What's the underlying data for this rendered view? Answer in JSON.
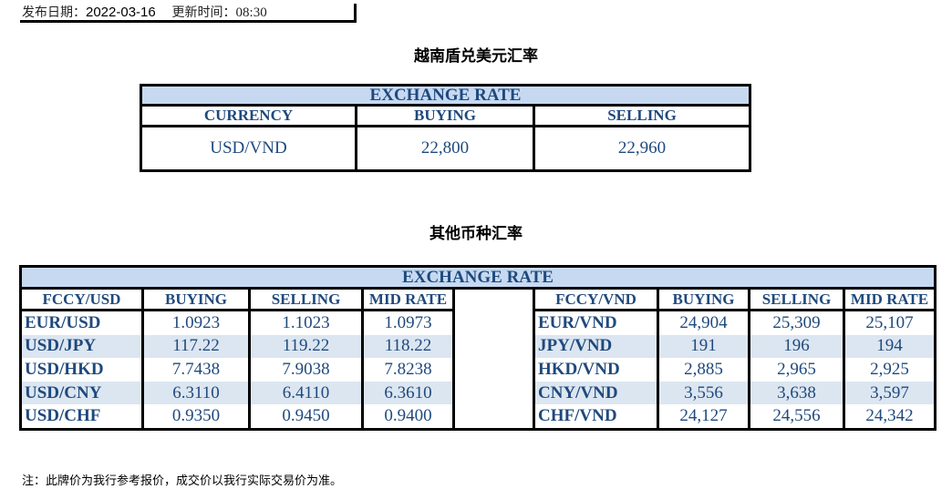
{
  "meta": {
    "date_label": "发布日期：",
    "date": "2022-03-16",
    "time_label": "更新时间：",
    "time": "08:30"
  },
  "usd_section": {
    "title": "越南盾兑美元汇率",
    "band": "EXCHANGE RATE",
    "headers": [
      "CURRENCY",
      "BUYING",
      "SELLING"
    ],
    "row": {
      "pair": "USD/VND",
      "buying": "22,800",
      "selling": "22,960"
    }
  },
  "other_section": {
    "title": "其他币种汇率",
    "band": "EXCHANGE  RATE",
    "left_headers": [
      "FCCY/USD",
      "BUYING",
      "SELLING",
      "MID RATE"
    ],
    "right_headers": [
      "FCCY/VND",
      "BUYING",
      "SELLING",
      "MID RATE"
    ],
    "rows": [
      {
        "l": [
          "EUR/USD",
          "1.0923",
          "1.1023",
          "1.0973"
        ],
        "r": [
          "EUR/VND",
          "24,904",
          "25,309",
          "25,107"
        ]
      },
      {
        "l": [
          "USD/JPY",
          "117.22",
          "119.22",
          "118.22"
        ],
        "r": [
          "JPY/VND",
          "191",
          "196",
          "194"
        ]
      },
      {
        "l": [
          "USD/HKD",
          "7.7438",
          "7.9038",
          "7.8238"
        ],
        "r": [
          "HKD/VND",
          "2,885",
          "2,965",
          "2,925"
        ]
      },
      {
        "l": [
          "USD/CNY",
          "6.3110",
          "6.4110",
          "6.3610"
        ],
        "r": [
          "CNY/VND",
          "3,556",
          "3,638",
          "3,597"
        ]
      },
      {
        "l": [
          "USD/CHF",
          "0.9350",
          "0.9450",
          "0.9400"
        ],
        "r": [
          "CHF/VND",
          "24,127",
          "24,556",
          "24,342"
        ]
      }
    ]
  },
  "note": "注：此牌价为我行参考报价，成交价以我行实际交易价为准。",
  "colors": {
    "text": "#1f497d",
    "band": "#c6d9f1",
    "alt_row": "#dce6f1"
  }
}
